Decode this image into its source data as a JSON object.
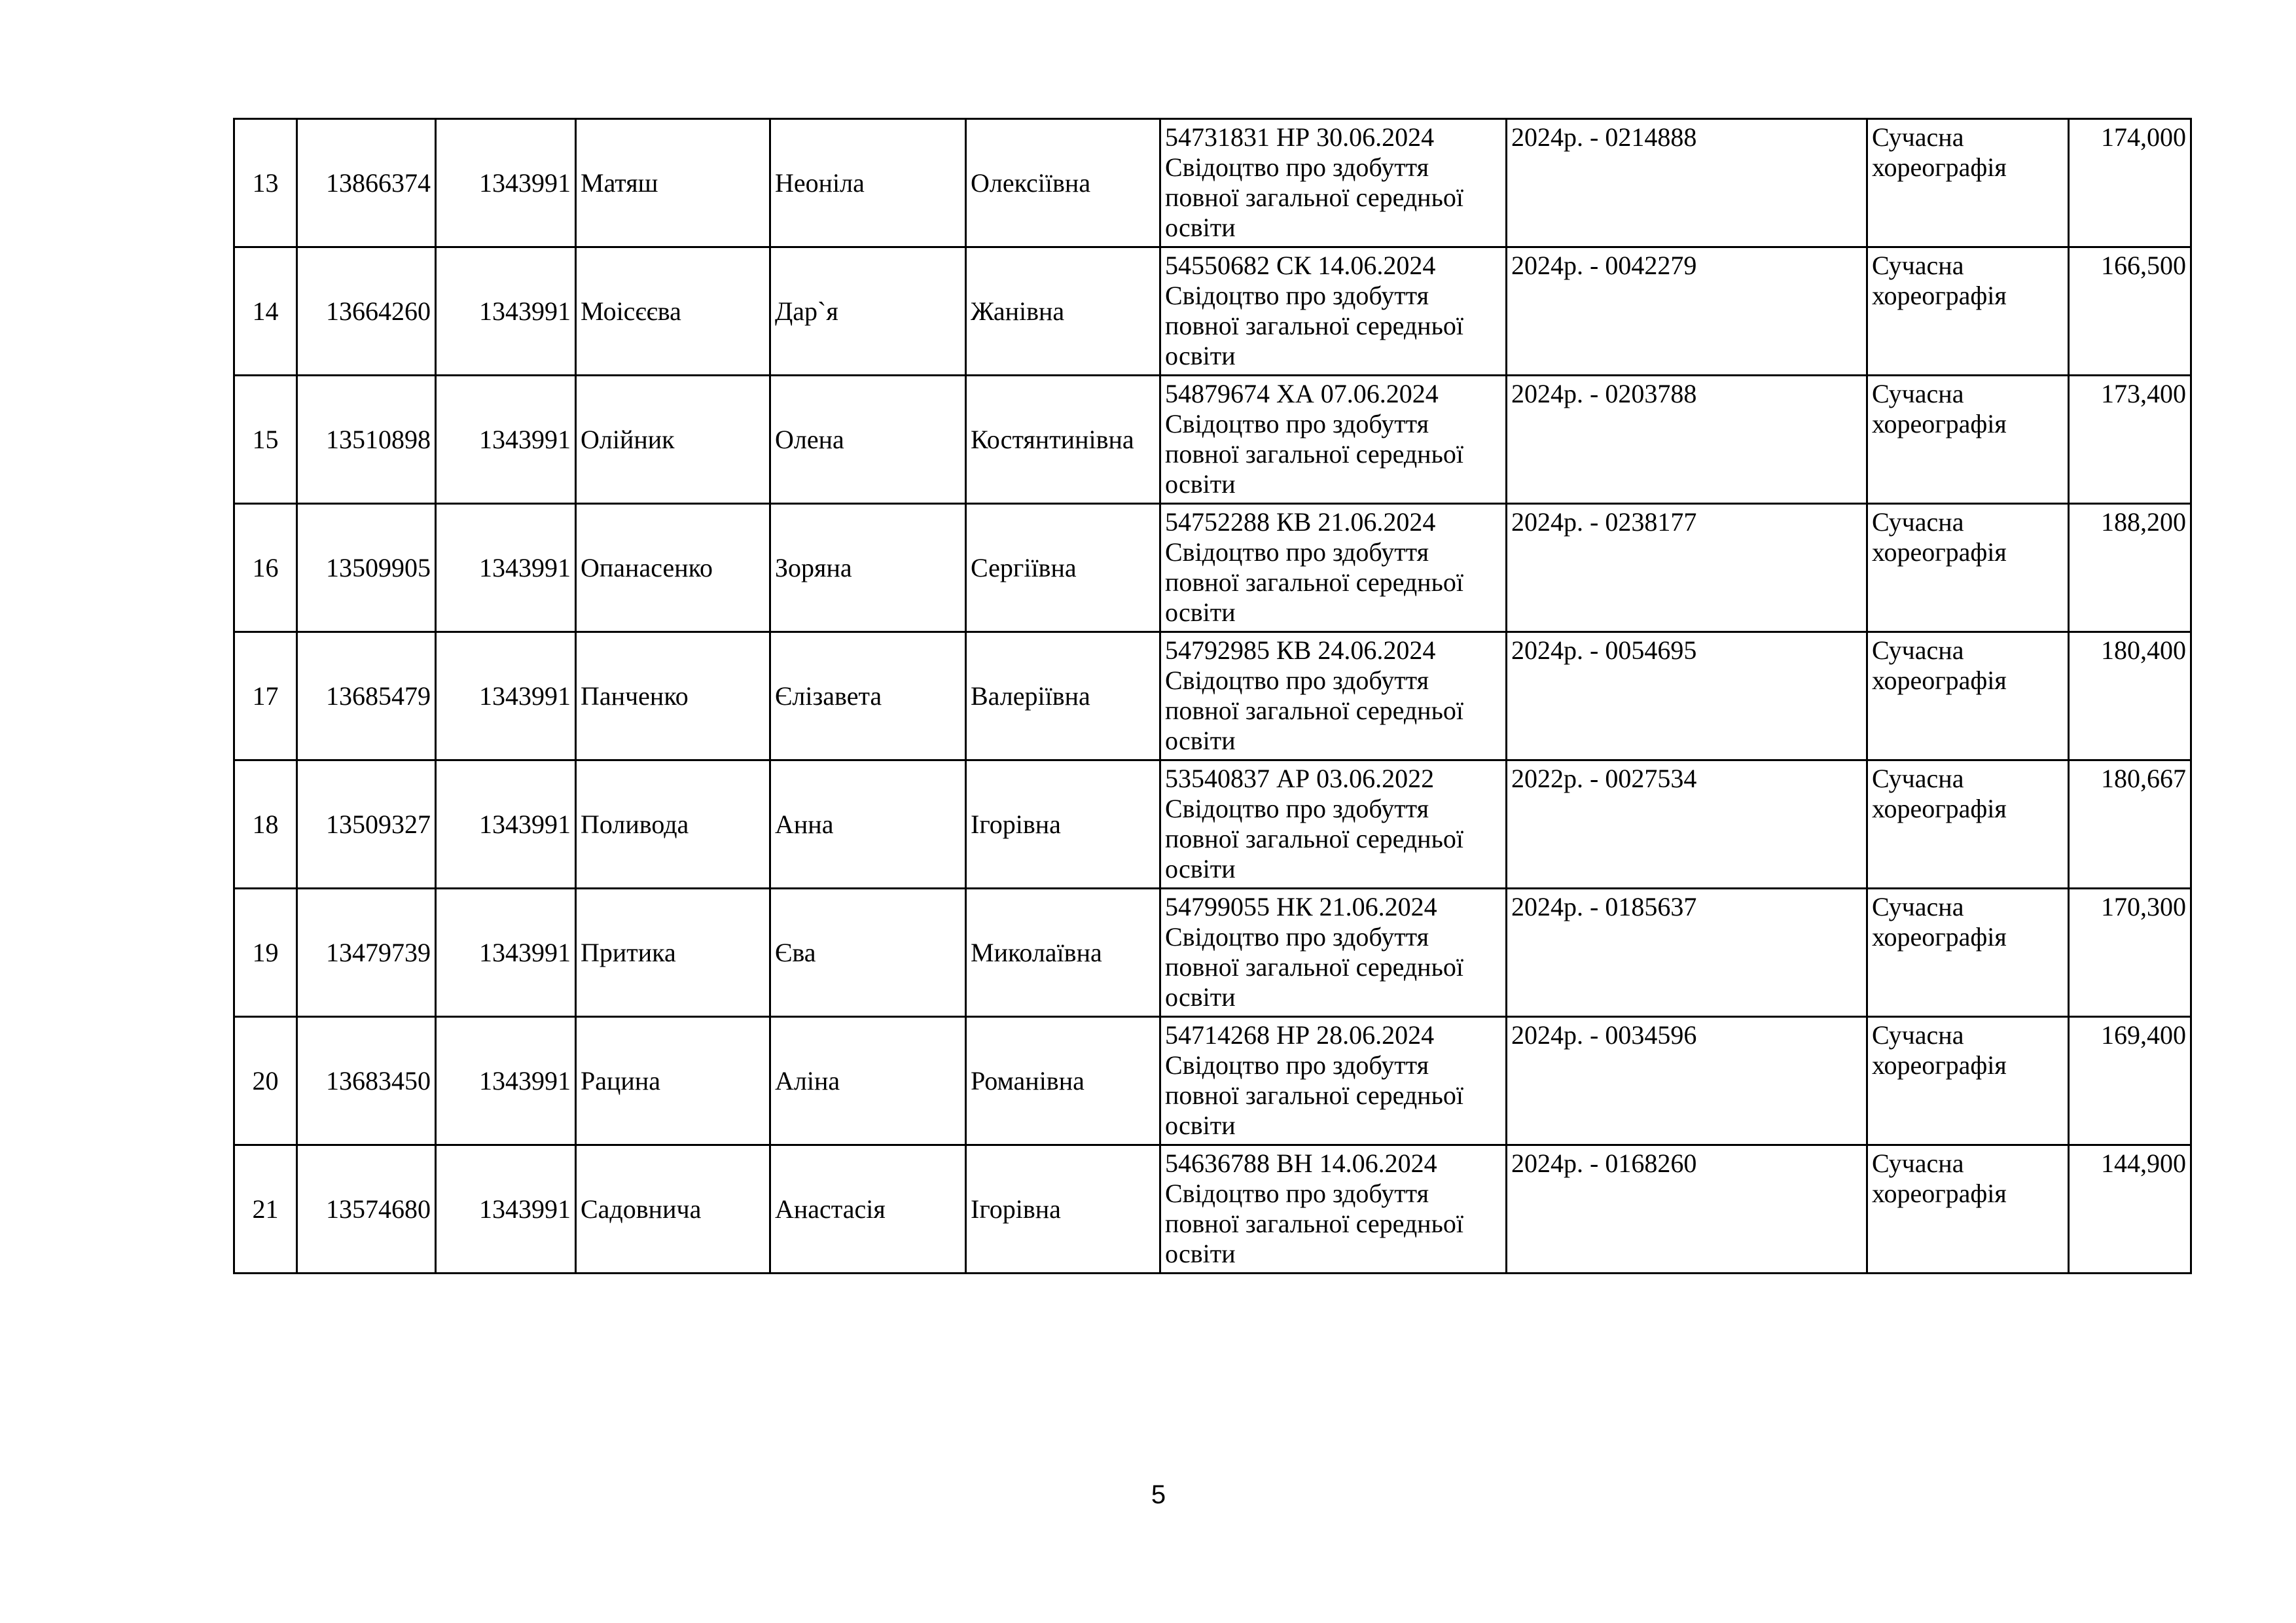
{
  "table": {
    "rows": [
      {
        "n": "13",
        "id": "13866374",
        "code": "1343991",
        "surname": "Матяш",
        "name": "Неоніла",
        "patronymic": "Олексіївна",
        "doc_line": "54731831 НР 30.06.2024",
        "doc_type": "Свідоцтво про здобуття повної загальної середньої освіти",
        "cert": "2024р. - 0214888",
        "specialty": "Сучасна хореографія",
        "score": "174,000"
      },
      {
        "n": "14",
        "id": "13664260",
        "code": "1343991",
        "surname": "Моісєєва",
        "name": "Дар`я",
        "patronymic": "Жанівна",
        "doc_line": "54550682 СК 14.06.2024",
        "doc_type": "Свідоцтво про здобуття повної загальної середньої освіти",
        "cert": "2024р. - 0042279",
        "specialty": "Сучасна хореографія",
        "score": "166,500"
      },
      {
        "n": "15",
        "id": "13510898",
        "code": "1343991",
        "surname": "Олійник",
        "name": "Олена",
        "patronymic": "Костянтинівна",
        "doc_line": "54879674 ХА 07.06.2024",
        "doc_type": "Свідоцтво про здобуття повної загальної середньої освіти",
        "cert": "2024р. - 0203788",
        "specialty": "Сучасна хореографія",
        "score": "173,400"
      },
      {
        "n": "16",
        "id": "13509905",
        "code": "1343991",
        "surname": "Опанасенко",
        "name": "Зоряна",
        "patronymic": "Сергіївна",
        "doc_line": "54752288 КВ 21.06.2024",
        "doc_type": "Свідоцтво про здобуття повної загальної середньої освіти",
        "cert": "2024р. - 0238177",
        "specialty": "Сучасна хореографія",
        "score": "188,200"
      },
      {
        "n": "17",
        "id": "13685479",
        "code": "1343991",
        "surname": "Панченко",
        "name": "Єлізавета",
        "patronymic": "Валеріївна",
        "doc_line": "54792985 КВ 24.06.2024",
        "doc_type": "Свідоцтво про здобуття повної загальної середньої освіти",
        "cert": "2024р. - 0054695",
        "specialty": "Сучасна хореографія",
        "score": "180,400"
      },
      {
        "n": "18",
        "id": "13509327",
        "code": "1343991",
        "surname": "Поливода",
        "name": "Анна",
        "patronymic": "Ігорівна",
        "doc_line": "53540837 АР 03.06.2022",
        "doc_type": "Свідоцтво про здобуття повної загальної середньої освіти",
        "cert": "2022р. - 0027534",
        "specialty": "Сучасна хореографія",
        "score": "180,667"
      },
      {
        "n": "19",
        "id": "13479739",
        "code": "1343991",
        "surname": "Притика",
        "name": "Єва",
        "patronymic": "Миколаївна",
        "doc_line": "54799055 НК 21.06.2024",
        "doc_type": "Свідоцтво про здобуття повної загальної середньої освіти",
        "cert": "2024р. - 0185637",
        "specialty": "Сучасна хореографія",
        "score": "170,300"
      },
      {
        "n": "20",
        "id": "13683450",
        "code": "1343991",
        "surname": "Рацина",
        "name": "Аліна",
        "patronymic": "Романівна",
        "doc_line": "54714268 НР 28.06.2024",
        "doc_type": "Свідоцтво про здобуття повної загальної середньої освіти",
        "cert": "2024р. - 0034596",
        "specialty": "Сучасна хореографія",
        "score": "169,400"
      },
      {
        "n": "21",
        "id": "13574680",
        "code": "1343991",
        "surname": "Садовнича",
        "name": "Анастасія",
        "patronymic": "Ігорівна",
        "doc_line": "54636788 ВН 14.06.2024",
        "doc_type": "Свідоцтво про здобуття повної загальної середньої освіти",
        "cert": "2024р. - 0168260",
        "specialty": "Сучасна хореографія",
        "score": "144,900"
      }
    ]
  },
  "page_number": "5"
}
